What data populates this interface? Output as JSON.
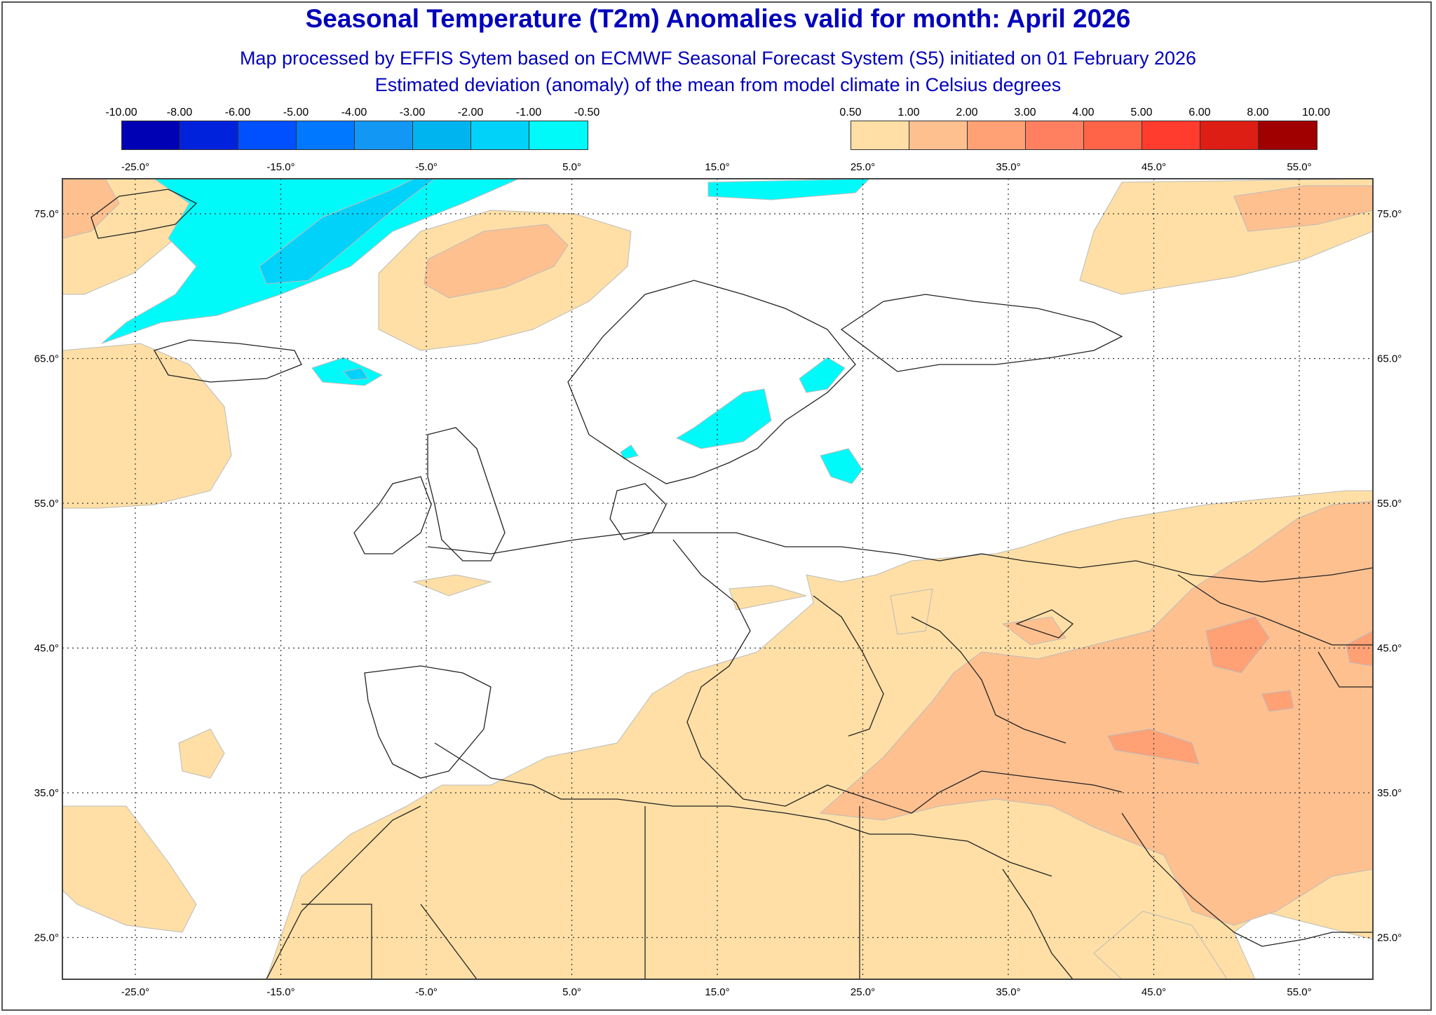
{
  "title": "Seasonal Temperature (T2m) Anomalies valid for month: April 2026",
  "subtitle1": "Map processed by EFFIS Sytem based on ECMWF Seasonal Forecast System (S5) initiated on 01 February 2026",
  "subtitle2": "Estimated deviation (anomaly) of the mean from model climate in Celsius degrees",
  "legend_negative": {
    "ticks": [
      "-10.00",
      "-8.00",
      "-6.00",
      "-5.00",
      "-4.00",
      "-3.00",
      "-2.00",
      "-1.00",
      "-0.50"
    ],
    "colors": [
      "#0000b4",
      "#0022dd",
      "#0050ff",
      "#0078ff",
      "#1298f4",
      "#00b4f0",
      "#00d2fa",
      "#00fafa"
    ]
  },
  "legend_positive": {
    "ticks": [
      "0.50",
      "1.00",
      "2.00",
      "3.00",
      "4.00",
      "5.00",
      "6.00",
      "8.00",
      "10.00"
    ],
    "colors": [
      "#ffdfa5",
      "#ffc090",
      "#ffa075",
      "#ff8060",
      "#ff6448",
      "#ff3c2d",
      "#dc1e14",
      "#a00000"
    ]
  },
  "axes": {
    "lon_labels": [
      "-25.0°",
      "-15.0°",
      "-5.0°",
      "5.0°",
      "15.0°",
      "25.0°",
      "35.0°",
      "45.0°",
      "55.0°"
    ],
    "lat_labels": [
      "75.0°",
      "65.0°",
      "55.0°",
      "45.0°",
      "35.0°",
      "25.0°"
    ]
  },
  "colors": {
    "title": "#0000bb",
    "land": "#ffffff",
    "anom_low": "#ffdfa5",
    "anom_mid": "#ffc090",
    "anom_high": "#ffa075",
    "cold_light": "#00fafa",
    "cold_mid": "#00d2fa"
  }
}
